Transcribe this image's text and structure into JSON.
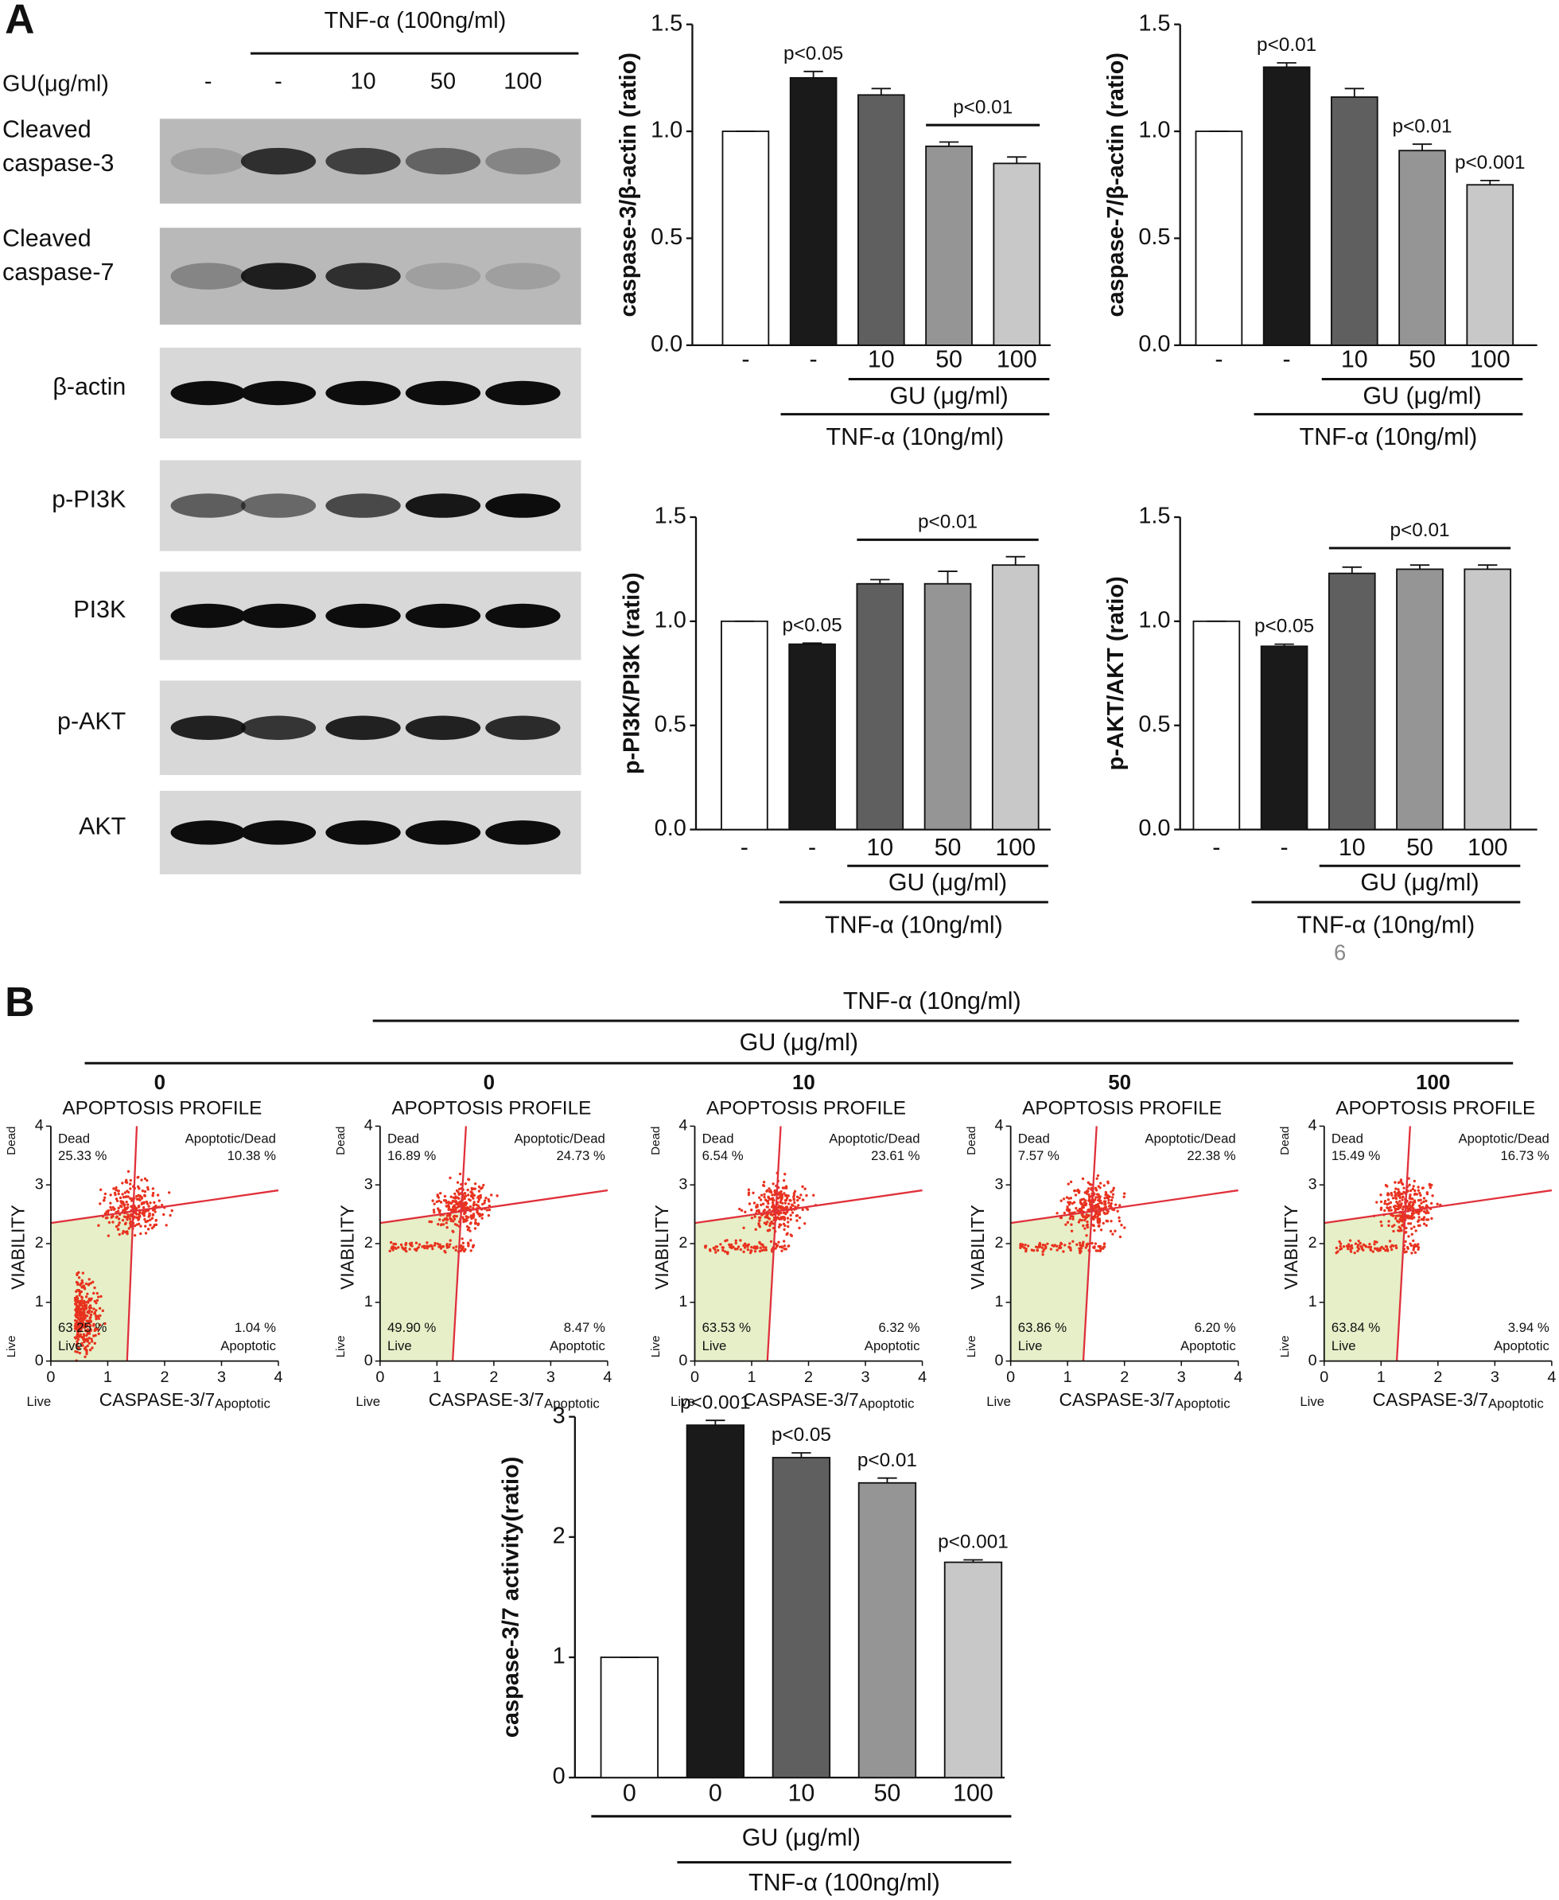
{
  "panel_a": {
    "label": "A",
    "blot": {
      "treatment": "TNF-α (100ng/ml)",
      "dose_title": "GU(μg/ml)",
      "doses": [
        "-",
        "-",
        "10",
        "50",
        "100"
      ],
      "rows": [
        [
          "Cleaved",
          "caspase-3"
        ],
        [
          "Cleaved",
          "caspase-7"
        ],
        [
          "β-actin"
        ],
        [
          "p-PI3K"
        ],
        [
          "PI3K"
        ],
        [
          "p-AKT"
        ],
        [
          "AKT"
        ]
      ]
    }
  },
  "chart_data": [
    {
      "type": "bar",
      "y_label": "caspase-3/β-actin (ratio)",
      "categories": [
        "-",
        "-",
        "10",
        "50",
        "100"
      ],
      "values": [
        1.0,
        1.25,
        1.17,
        0.93,
        0.85
      ],
      "errors": [
        0,
        0.03,
        0.03,
        0.02,
        0.03
      ],
      "colors": [
        "#ffffff",
        "#1a1a1a",
        "#5f5f5f",
        "#959595",
        "#c8c8c8"
      ],
      "ylim": [
        0,
        1.5
      ],
      "yticks": [
        {
          "value": 0,
          "label": "0.0"
        },
        {
          "value": 0.5,
          "label": "0.5"
        },
        {
          "value": 1,
          "label": "1.0"
        },
        {
          "value": 1.5,
          "label": "1.5"
        }
      ],
      "groups": [
        {
          "label": "GU (μg/ml)",
          "from": 2,
          "to": 4
        },
        {
          "label": "TNF-α (10ng/ml)",
          "from": 1,
          "to": 4
        }
      ],
      "annotations": [
        {
          "text": "p<0.05",
          "from": 1,
          "to": 1
        },
        {
          "text": "p<0.01",
          "from": 3,
          "to": 4
        }
      ]
    },
    {
      "type": "bar",
      "y_label": "caspase-7/β-actin (ratio)",
      "categories": [
        "-",
        "-",
        "10",
        "50",
        "100"
      ],
      "values": [
        1.0,
        1.3,
        1.16,
        0.91,
        0.75
      ],
      "errors": [
        0,
        0.02,
        0.04,
        0.03,
        0.02
      ],
      "colors": [
        "#ffffff",
        "#1a1a1a",
        "#5f5f5f",
        "#959595",
        "#c8c8c8"
      ],
      "ylim": [
        0,
        1.5
      ],
      "yticks": [
        {
          "value": 0,
          "label": "0.0"
        },
        {
          "value": 0.5,
          "label": "0.5"
        },
        {
          "value": 1,
          "label": "1.0"
        },
        {
          "value": 1.5,
          "label": "1.5"
        }
      ],
      "groups": [
        {
          "label": "GU (μg/ml)",
          "from": 2,
          "to": 4
        },
        {
          "label": "TNF-α (10ng/ml)",
          "from": 1,
          "to": 4
        }
      ],
      "annotations": [
        {
          "text": "p<0.01",
          "from": 1,
          "to": 1
        },
        {
          "text": "p<0.01",
          "from": 3,
          "to": 3
        },
        {
          "text": "p<0.001",
          "from": 4,
          "to": 4
        }
      ]
    },
    {
      "type": "bar",
      "y_label": "p-PI3K/PI3K (ratio)",
      "categories": [
        "-",
        "-",
        "10",
        "50",
        "100"
      ],
      "values": [
        1.0,
        0.89,
        1.18,
        1.18,
        1.27
      ],
      "errors": [
        0,
        0.005,
        0.02,
        0.06,
        0.04
      ],
      "colors": [
        "#ffffff",
        "#1a1a1a",
        "#5f5f5f",
        "#959595",
        "#c8c8c8"
      ],
      "ylim": [
        0,
        1.5
      ],
      "yticks": [
        {
          "value": 0,
          "label": "0.0"
        },
        {
          "value": 0.5,
          "label": "0.5"
        },
        {
          "value": 1,
          "label": "1.0"
        },
        {
          "value": 1.5,
          "label": "1.5"
        }
      ],
      "groups": [
        {
          "label": "GU (μg/ml)",
          "from": 2,
          "to": 4
        },
        {
          "label": "TNF-α (10ng/ml)",
          "from": 1,
          "to": 4
        }
      ],
      "annotations": [
        {
          "text": "p<0.05",
          "from": 1,
          "to": 1
        },
        {
          "text": "p<0.01",
          "from": 2,
          "to": 4
        }
      ]
    },
    {
      "type": "bar",
      "y_label": "p-AKT/AKT (ratio)",
      "categories": [
        "-",
        "-",
        "10",
        "50",
        "100"
      ],
      "values": [
        1.0,
        0.88,
        1.23,
        1.25,
        1.25
      ],
      "errors": [
        0,
        0.01,
        0.03,
        0.02,
        0.02
      ],
      "colors": [
        "#ffffff",
        "#1a1a1a",
        "#5f5f5f",
        "#959595",
        "#c8c8c8"
      ],
      "ylim": [
        0,
        1.5
      ],
      "yticks": [
        {
          "value": 0,
          "label": "0.0"
        },
        {
          "value": 0.5,
          "label": "0.5"
        },
        {
          "value": 1,
          "label": "1.0"
        },
        {
          "value": 1.5,
          "label": "1.5"
        }
      ],
      "groups": [
        {
          "label": "GU (μg/ml)",
          "from": 2,
          "to": 4
        },
        {
          "label": "TNF-α (10ng/ml)",
          "from": 1,
          "to": 4
        }
      ],
      "annotations": [
        {
          "text": "p<0.05",
          "from": 1,
          "to": 1
        },
        {
          "text": "p<0.01",
          "from": 2,
          "to": 4
        }
      ]
    },
    {
      "type": "bar",
      "y_label": "caspase-3/7 activity(ratio)",
      "categories": [
        "0",
        "0",
        "10",
        "50",
        "100"
      ],
      "values": [
        1.0,
        2.93,
        2.66,
        2.45,
        1.79
      ],
      "errors": [
        0,
        0.04,
        0.04,
        0.04,
        0.02
      ],
      "colors": [
        "#ffffff",
        "#1a1a1a",
        "#5f5f5f",
        "#959595",
        "#c8c8c8"
      ],
      "ylim": [
        0,
        3
      ],
      "yticks": [
        0,
        1,
        2,
        3
      ],
      "groups": [
        {
          "label": "GU (μg/ml)",
          "from": 0,
          "to": 4
        },
        {
          "label": "TNF-α (100ng/ml)",
          "from": 1,
          "to": 4
        }
      ],
      "annotations": [
        {
          "text": "p<0.001",
          "from": 1,
          "to": 1
        },
        {
          "text": "p<0.05",
          "from": 2,
          "to": 2
        },
        {
          "text": "p<0.01",
          "from": 3,
          "to": 3
        },
        {
          "text": "p<0.001",
          "from": 4,
          "to": 4
        }
      ]
    }
  ],
  "page_number": "6",
  "panel_b": {
    "label": "B",
    "treatment": "TNF-α (10ng/ml)",
    "dose_title": "GU (μg/ml)",
    "plot_title": "APOPTOSIS PROFILE",
    "y_label": "VIABILITY",
    "y_top": "Dead",
    "y_bottom": "Live",
    "x_label": "CASPASE-3/7",
    "x_sub": "Apoptotic",
    "x_left": "Live",
    "ticks": [
      0,
      1,
      2,
      3,
      4
    ],
    "quadrants": {
      "dead": "Dead",
      "apo_dead": "Apoptotic/Dead",
      "live": "Live",
      "apo": "Apoptotic"
    },
    "plots": [
      {
        "dose": "0",
        "dead": "25.33 %",
        "apo_dead": "10.38 %",
        "live": "63.25 %",
        "apo": "1.04 %"
      },
      {
        "dose": "0",
        "dead": "16.89 %",
        "apo_dead": "24.73 %",
        "live": "49.90 %",
        "apo": "8.47 %"
      },
      {
        "dose": "10",
        "dead": "6.54 %",
        "apo_dead": "23.61 %",
        "live": "63.53 %",
        "apo": "6.32 %"
      },
      {
        "dose": "50",
        "dead": "7.57 %",
        "apo_dead": "22.38 %",
        "live": "63.86 %",
        "apo": "6.20 %"
      },
      {
        "dose": "100",
        "dead": "15.49 %",
        "apo_dead": "16.73 %",
        "live": "63.84 %",
        "apo": "3.94 %"
      }
    ]
  }
}
